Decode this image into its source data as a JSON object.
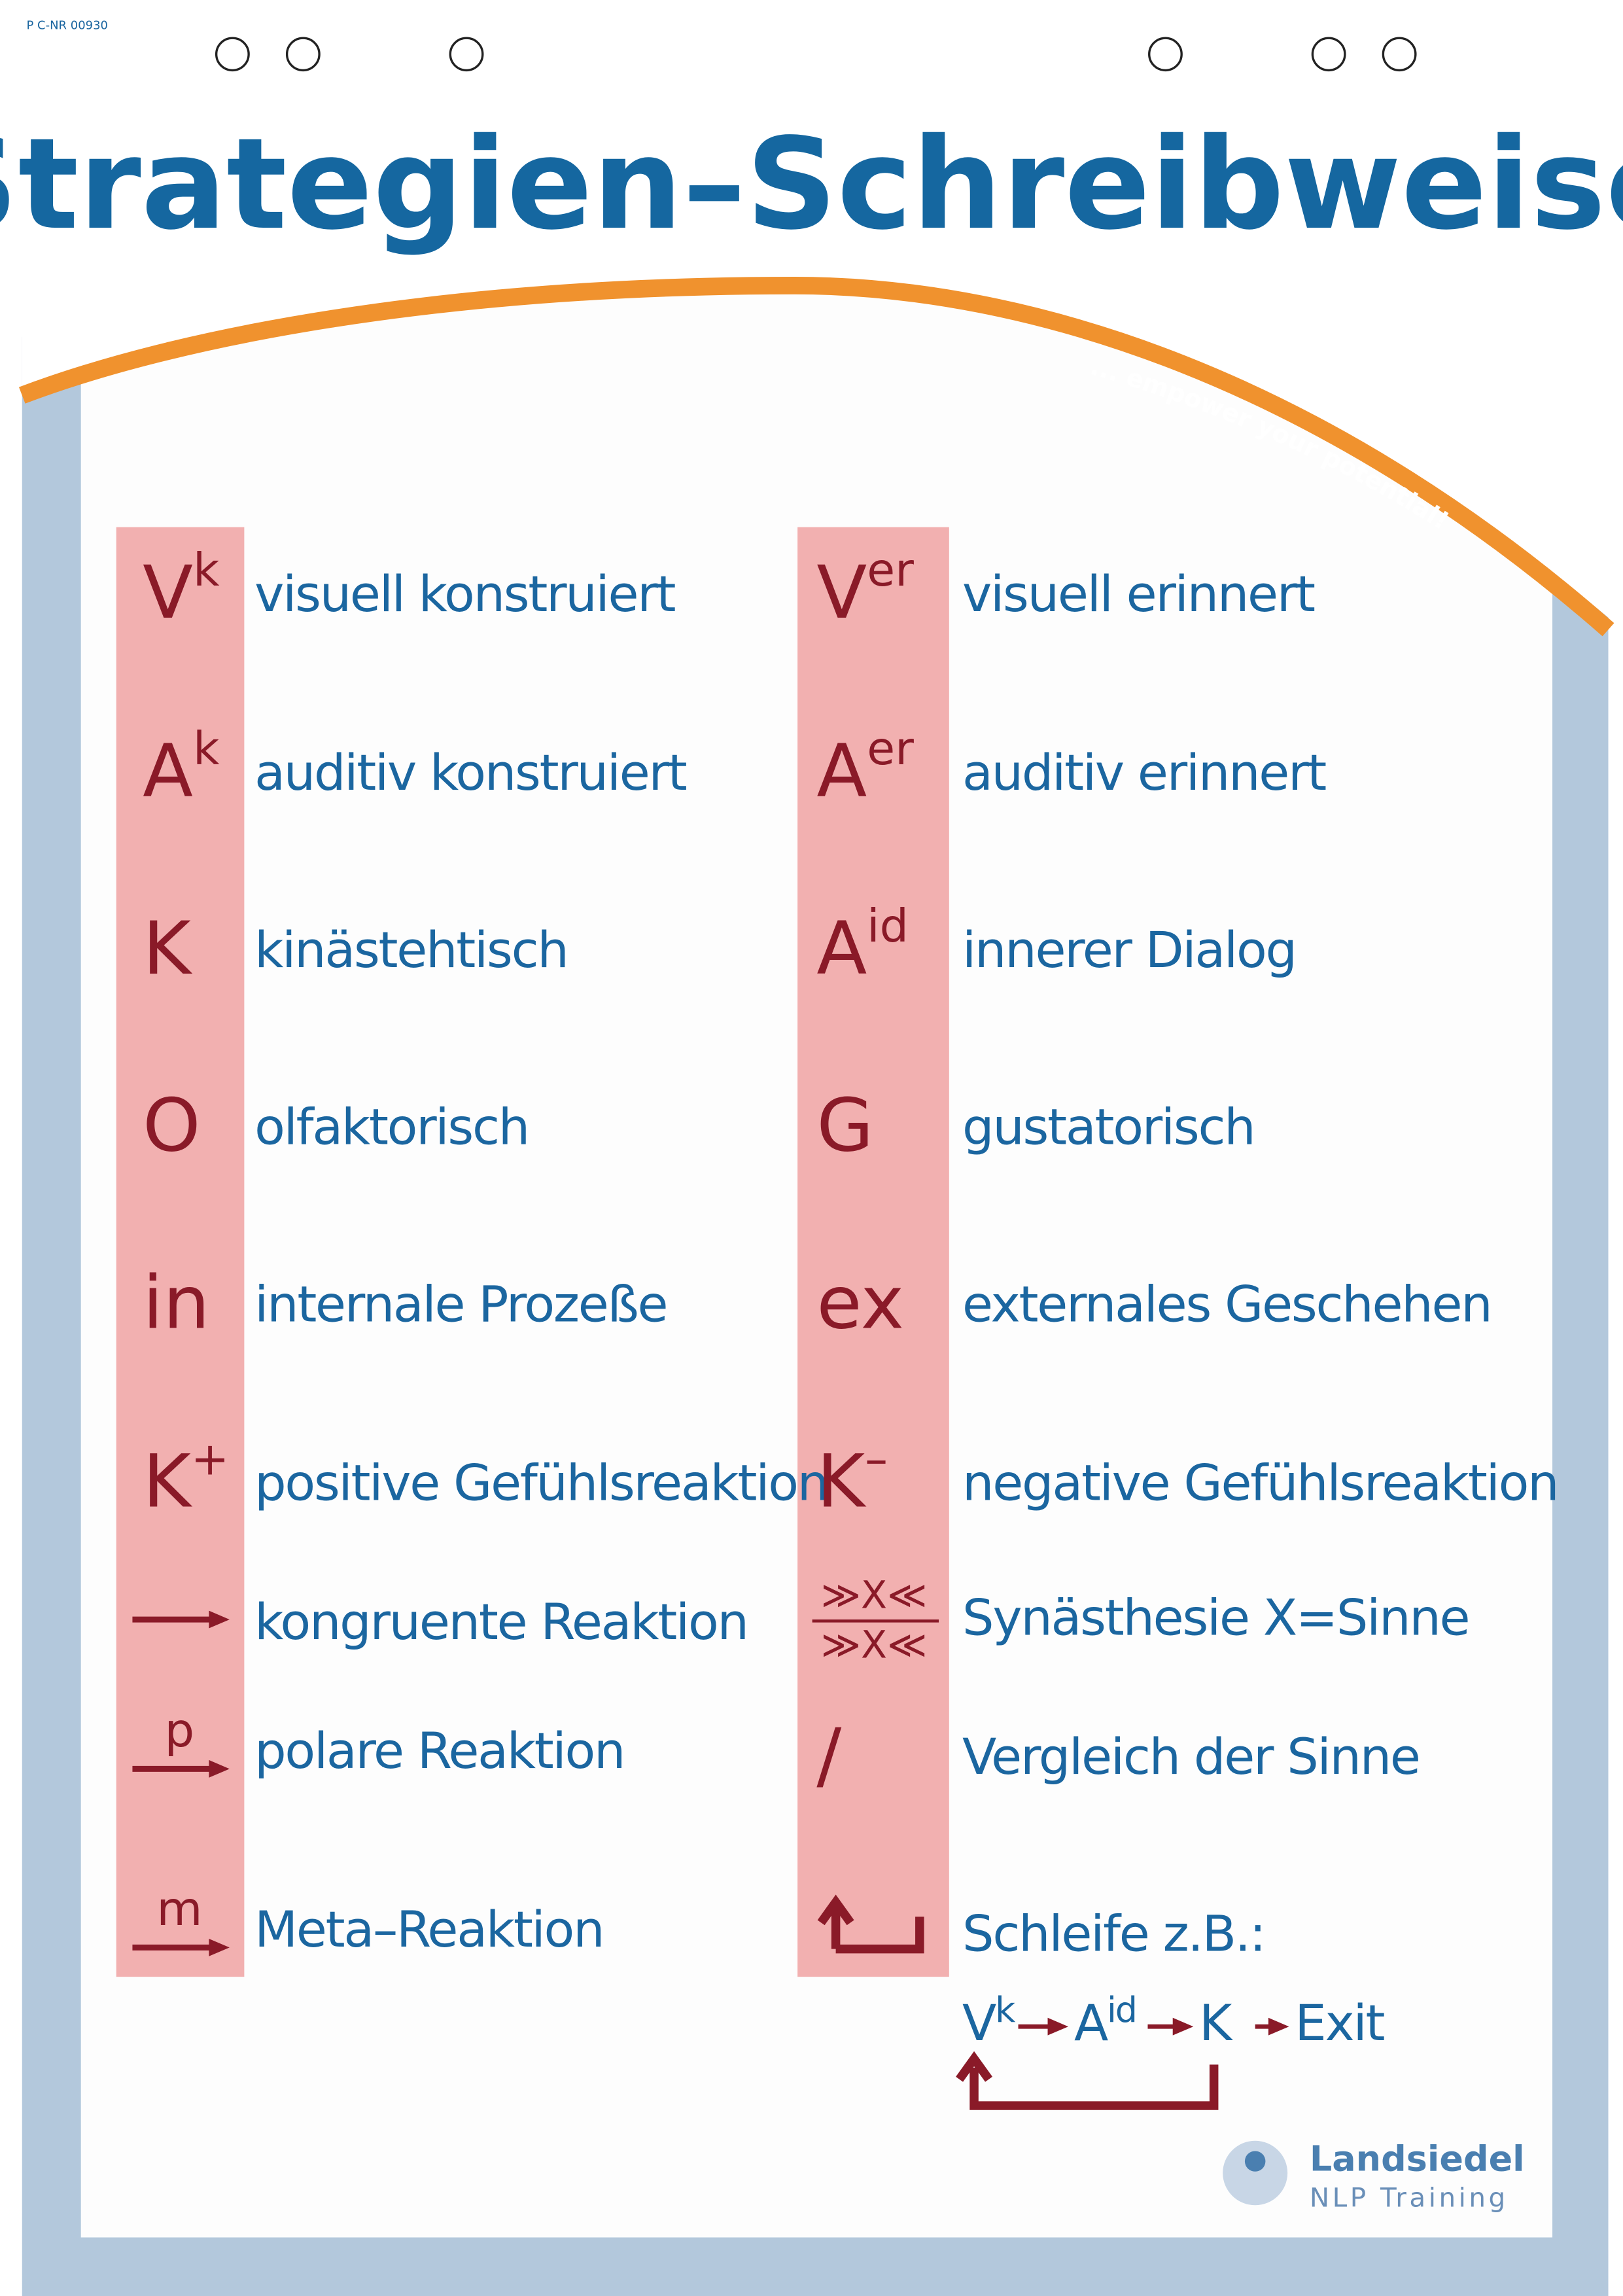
{
  "header": {
    "code": "P C-NR 00930",
    "title": "Strategien–Schreibweise",
    "tagline": "... empower your potential!"
  },
  "left": [
    {
      "base": "V",
      "sup": "k",
      "label": "visuell konstruiert"
    },
    {
      "base": "A",
      "sup": "k",
      "label": "auditiv konstruiert"
    },
    {
      "base": "K",
      "label": "kinästehtisch"
    },
    {
      "base": "O",
      "label": "olfaktorisch"
    },
    {
      "base": "in",
      "label": "internale Prozeße"
    },
    {
      "base": "K",
      "sup": "+",
      "label": "positive Gefühlsreaktion"
    },
    {
      "arrow": true,
      "label": "kongruente Reaktion"
    },
    {
      "arrow": true,
      "sup": "p",
      "label": "polare Reaktion"
    },
    {
      "arrow": true,
      "sup": "m",
      "label": "Meta–Reaktion"
    }
  ],
  "right": [
    {
      "base": "V",
      "sup": "er",
      "label": "visuell erinnert"
    },
    {
      "base": "A",
      "sup": "er",
      "label": "auditiv erinnert"
    },
    {
      "base": "A",
      "sup": "id",
      "label": "innerer Dialog"
    },
    {
      "base": "G",
      "label": "gustatorisch"
    },
    {
      "base": "ex",
      "label": "externales Geschehen"
    },
    {
      "base": "K",
      "sup": "–",
      "label": "negative Gefühlsreaktion"
    },
    {
      "top": "≫X≪",
      "bottom": "≫X≪",
      "label": "Synästhesie X=Sinne"
    },
    {
      "base": "/",
      "label": "Vergleich der Sinne"
    },
    {
      "loop": true,
      "label": "Schleife  z.B.:"
    }
  ],
  "example": [
    {
      "base": "V",
      "sup": "k"
    },
    {
      "base": "A",
      "sup": "id"
    },
    {
      "base": "K"
    },
    {
      "base": "Exit"
    }
  ],
  "logo": {
    "name": "Landsiedel",
    "subtitle": "NLP Training"
  }
}
